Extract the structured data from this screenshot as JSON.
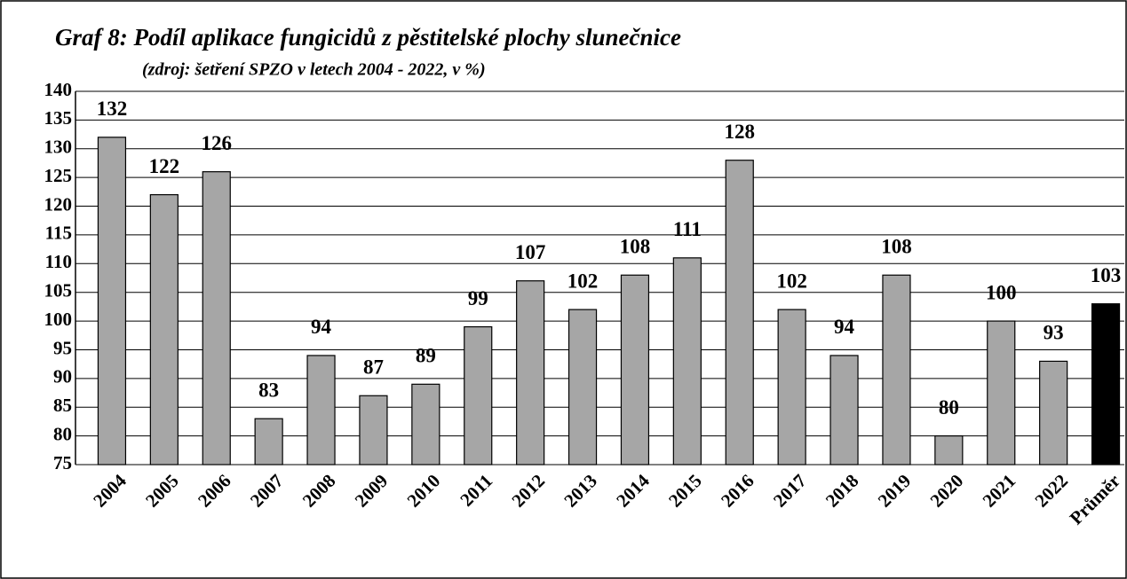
{
  "chart_data": {
    "type": "bar",
    "title": "Graf 8: Podíl aplikace fungicidů z pěstitelské plochy slunečnice",
    "subtitle": "(zdroj: šetření SPZO v letech 2004 - 2022, v %)",
    "categories": [
      "2004",
      "2005",
      "2006",
      "2007",
      "2008",
      "2009",
      "2010",
      "2011",
      "2012",
      "2013",
      "2014",
      "2015",
      "2016",
      "2017",
      "2018",
      "2019",
      "2020",
      "2021",
      "2022",
      "Průměr"
    ],
    "values": [
      132,
      122,
      126,
      83,
      94,
      87,
      89,
      99,
      107,
      102,
      108,
      111,
      128,
      102,
      94,
      108,
      80,
      100,
      93,
      103
    ],
    "colors": [
      "#a6a6a6",
      "#a6a6a6",
      "#a6a6a6",
      "#a6a6a6",
      "#a6a6a6",
      "#a6a6a6",
      "#a6a6a6",
      "#a6a6a6",
      "#a6a6a6",
      "#a6a6a6",
      "#a6a6a6",
      "#a6a6a6",
      "#a6a6a6",
      "#a6a6a6",
      "#a6a6a6",
      "#a6a6a6",
      "#a6a6a6",
      "#a6a6a6",
      "#a6a6a6",
      "#000000"
    ],
    "ylim": [
      75,
      140
    ],
    "yticks": [
      75,
      80,
      85,
      90,
      95,
      100,
      105,
      110,
      115,
      120,
      125,
      130,
      135,
      140
    ],
    "grid": true
  }
}
